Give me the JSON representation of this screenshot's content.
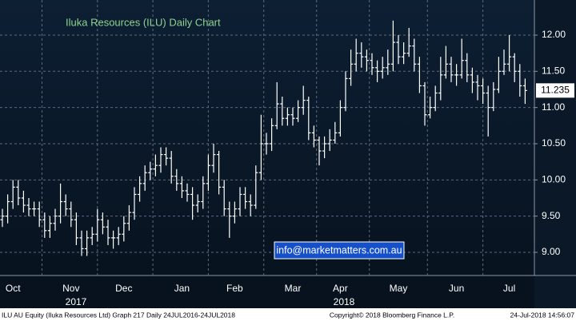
{
  "chart_data": {
    "type": "ohlc",
    "title": "Iluka Resources (ILU) Daily Chart",
    "watermark": "info@marketmatters.com.au",
    "footer": {
      "left": "ILU AU Equity (Iluka Resources Ltd) Graph 217  Daily 24JUL2016-24JUL2018",
      "center": "Copyright© 2018 Bloomberg Finance L.P.",
      "right": "24-Jul-2018 14:56:07"
    },
    "year_labels": [
      "2017",
      "2018"
    ],
    "color": "#ffffff",
    "grid": true,
    "ylim": [
      8.68,
      12.485
    ],
    "yticks": [
      {
        "value": 9,
        "label": "9.00"
      },
      {
        "value": 9.5,
        "label": "9.50"
      },
      {
        "value": 10,
        "label": "10.00"
      },
      {
        "value": 10.5,
        "label": "10.50"
      },
      {
        "value": 11,
        "label": "11.00"
      },
      {
        "value": 11.5,
        "label": "11.50"
      },
      {
        "value": 12,
        "label": "12.00"
      }
    ],
    "categories": [
      null,
      null,
      "Oct",
      null,
      null,
      null,
      null,
      null,
      null,
      null,
      null,
      null,
      null,
      "Nov",
      null,
      null,
      null,
      null,
      null,
      null,
      null,
      null,
      null,
      "Dec",
      null,
      null,
      null,
      null,
      null,
      null,
      null,
      null,
      null,
      null,
      "Jan",
      null,
      null,
      null,
      null,
      null,
      null,
      null,
      null,
      null,
      "Feb",
      null,
      null,
      null,
      null,
      null,
      null,
      null,
      null,
      null,
      null,
      "Mar",
      null,
      null,
      null,
      null,
      null,
      null,
      null,
      null,
      "Apr",
      null,
      null,
      null,
      null,
      null,
      null,
      null,
      null,
      null,
      null,
      "May",
      null,
      null,
      null,
      null,
      null,
      null,
      null,
      null,
      null,
      null,
      "Jun",
      null,
      null,
      null,
      null,
      null,
      null,
      null,
      null,
      null,
      "Jul",
      null,
      null,
      null
    ],
    "open": [
      9.45,
      9.5,
      9.7,
      9.9,
      9.75,
      9.65,
      9.6,
      9.6,
      9.45,
      9.3,
      9.4,
      9.5,
      9.7,
      9.6,
      9.45,
      9.2,
      9.05,
      9.2,
      9.25,
      9.45,
      9.35,
      9.2,
      9.2,
      9.25,
      9.4,
      9.55,
      9.8,
      9.95,
      10.1,
      10.15,
      10.2,
      10.35,
      10.3,
      10.05,
      9.95,
      9.85,
      9.8,
      9.65,
      9.7,
      9.95,
      10.2,
      10.35,
      9.9,
      9.6,
      9.5,
      9.6,
      9.8,
      9.7,
      9.65,
      10.1,
      10.5,
      10.5,
      10.75,
      11.05,
      10.85,
      10.9,
      10.85,
      11.0,
      11.1,
      10.65,
      10.55,
      10.4,
      10.5,
      10.55,
      10.65,
      11.0,
      11.4,
      11.6,
      11.75,
      11.7,
      11.65,
      11.55,
      11.5,
      11.55,
      11.6,
      11.9,
      11.7,
      11.75,
      11.85,
      11.6,
      11.3,
      10.9,
      11.0,
      11.2,
      11.45,
      11.6,
      11.45,
      11.45,
      11.65,
      11.45,
      11.35,
      11.3,
      11.2,
      11.0,
      11.25,
      11.5,
      11.6,
      11.7,
      11.5,
      11.3
    ],
    "high": [
      9.6,
      9.8,
      10.0,
      10.0,
      9.85,
      9.75,
      9.7,
      9.7,
      9.55,
      9.5,
      9.6,
      9.95,
      9.8,
      9.7,
      9.55,
      9.3,
      9.3,
      9.35,
      9.6,
      9.55,
      9.45,
      9.3,
      9.35,
      9.5,
      9.65,
      9.9,
      10.05,
      10.2,
      10.25,
      10.35,
      10.45,
      10.45,
      10.4,
      10.15,
      10.05,
      9.95,
      9.9,
      9.8,
      10.05,
      10.35,
      10.5,
      10.4,
      10.0,
      9.7,
      9.7,
      9.9,
      9.9,
      9.8,
      10.2,
      10.9,
      10.65,
      10.85,
      11.35,
      11.15,
      11.0,
      11.0,
      11.1,
      11.3,
      11.15,
      10.75,
      10.6,
      10.6,
      10.7,
      10.8,
      11.1,
      11.5,
      11.8,
      11.95,
      11.9,
      11.8,
      11.75,
      11.65,
      11.7,
      11.8,
      12.2,
      12.0,
      11.9,
      12.1,
      11.95,
      11.7,
      11.35,
      11.15,
      11.3,
      11.7,
      11.85,
      11.7,
      11.6,
      11.95,
      11.75,
      11.55,
      11.45,
      11.4,
      11.3,
      11.35,
      11.7,
      11.8,
      12.0,
      11.75,
      11.6,
      11.4
    ],
    "low": [
      9.35,
      9.4,
      9.6,
      9.65,
      9.55,
      9.5,
      9.5,
      9.35,
      9.2,
      9.2,
      9.3,
      9.4,
      9.5,
      9.35,
      9.1,
      8.95,
      8.95,
      9.1,
      9.15,
      9.25,
      9.1,
      9.05,
      9.1,
      9.15,
      9.3,
      9.45,
      9.7,
      9.85,
      10.0,
      10.05,
      10.1,
      10.2,
      9.95,
      9.85,
      9.75,
      9.7,
      9.45,
      9.55,
      9.6,
      9.85,
      10.1,
      9.8,
      9.5,
      9.2,
      9.4,
      9.5,
      9.6,
      9.5,
      9.6,
      10.0,
      10.35,
      10.4,
      10.7,
      10.75,
      10.75,
      10.75,
      10.8,
      10.9,
      10.55,
      10.45,
      10.2,
      10.3,
      10.4,
      10.5,
      10.6,
      10.95,
      11.3,
      11.5,
      11.55,
      11.5,
      11.45,
      11.35,
      11.4,
      11.45,
      11.5,
      11.6,
      11.6,
      11.7,
      11.5,
      11.2,
      10.75,
      10.85,
      10.95,
      11.1,
      11.4,
      11.35,
      11.3,
      11.4,
      11.35,
      11.2,
      11.1,
      11.05,
      10.6,
      10.95,
      11.2,
      11.45,
      11.5,
      11.35,
      11.15,
      11.05
    ],
    "close": [
      9.5,
      9.7,
      9.9,
      9.75,
      9.65,
      9.6,
      9.6,
      9.45,
      9.3,
      9.4,
      9.5,
      9.7,
      9.6,
      9.45,
      9.2,
      9.05,
      9.2,
      9.25,
      9.45,
      9.35,
      9.2,
      9.2,
      9.25,
      9.4,
      9.55,
      9.8,
      9.95,
      10.1,
      10.15,
      10.2,
      10.35,
      10.3,
      10.05,
      9.95,
      9.85,
      9.8,
      9.65,
      9.7,
      9.95,
      10.2,
      10.35,
      9.9,
      9.6,
      9.5,
      9.6,
      9.8,
      9.7,
      9.65,
      10.1,
      10.5,
      10.5,
      10.75,
      11.05,
      10.85,
      10.9,
      10.85,
      11.0,
      11.1,
      10.65,
      10.55,
      10.4,
      10.5,
      10.55,
      10.65,
      11.0,
      11.4,
      11.6,
      11.75,
      11.7,
      11.65,
      11.55,
      11.5,
      11.55,
      11.6,
      11.9,
      11.7,
      11.75,
      11.85,
      11.6,
      11.3,
      10.9,
      11.0,
      11.2,
      11.45,
      11.6,
      11.45,
      11.45,
      11.65,
      11.45,
      11.35,
      11.3,
      11.2,
      11.0,
      11.25,
      11.5,
      11.6,
      11.7,
      11.5,
      11.3,
      11.235
    ]
  }
}
